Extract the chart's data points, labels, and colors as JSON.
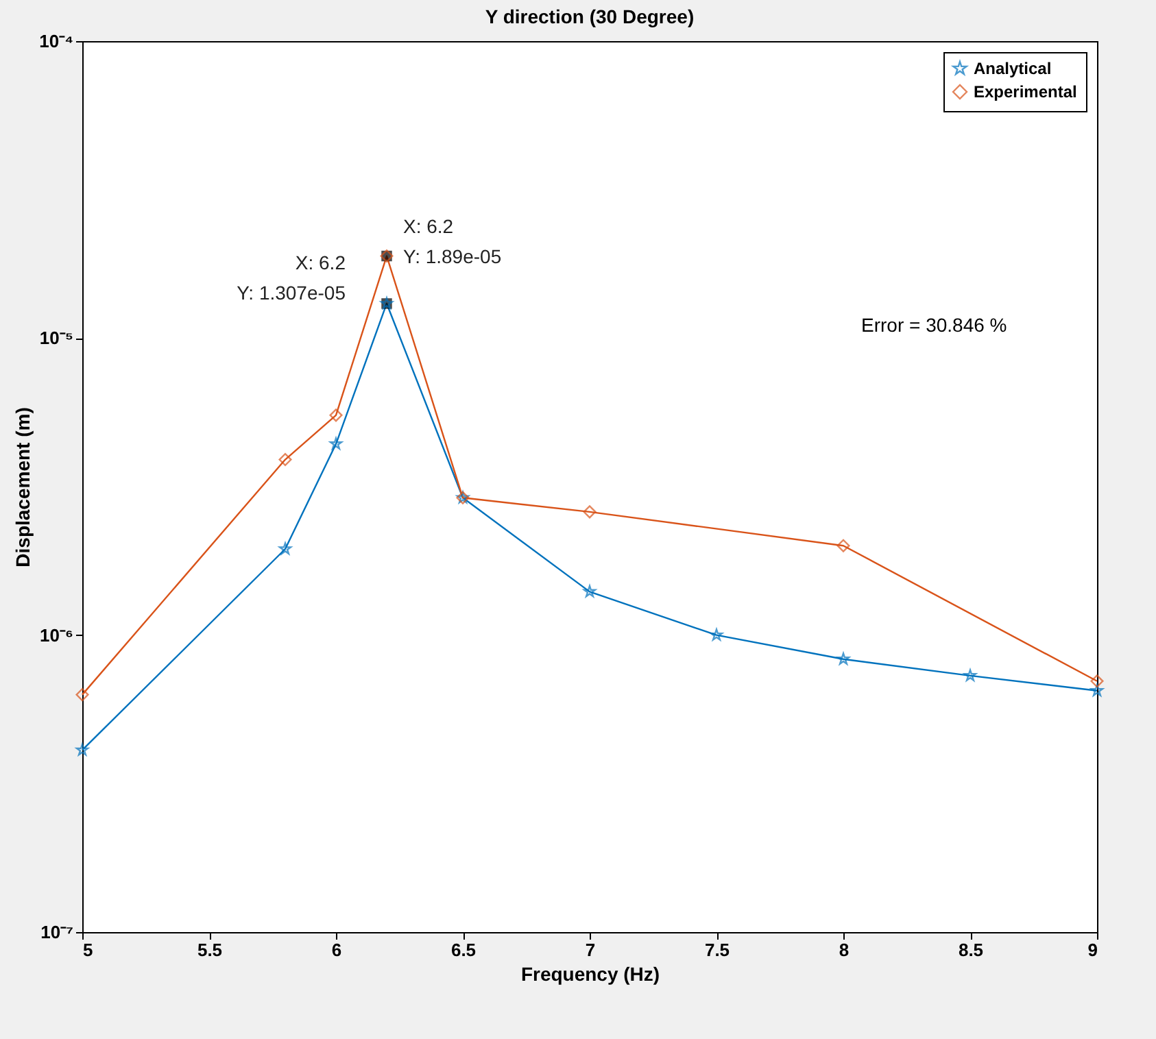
{
  "chart_data": {
    "type": "line",
    "title": "Y direction (30 Degree)",
    "xlabel": "Frequency (Hz)",
    "ylabel": "Displacement (m)",
    "log": "y",
    "grid": false,
    "legend": "top right",
    "xlim": [
      5,
      9
    ],
    "xticks": [
      5,
      5.5,
      6,
      6.5,
      7,
      7.5,
      8,
      8.5,
      9
    ],
    "ylim": [
      1e-07,
      0.0001
    ],
    "yticks": [
      {
        "value": 1e-07,
        "label": "10⁻⁷"
      },
      {
        "value": 1e-06,
        "label": "10⁻⁶"
      },
      {
        "value": 1e-05,
        "label": "10⁻⁵"
      },
      {
        "value": 0.0001,
        "label": "10⁻⁴"
      }
    ],
    "series": [
      {
        "name": "Analytical",
        "color": "#0072bd",
        "marker": "star",
        "x": [
          5,
          5.8,
          6,
          6.2,
          6.5,
          7,
          7.5,
          8,
          8.5,
          9
        ],
        "values": [
          4.1e-07,
          1.95e-06,
          4.4e-06,
          1.307e-05,
          2.9e-06,
          1.4e-06,
          1e-06,
          8.3e-07,
          7.3e-07,
          6.5e-07
        ]
      },
      {
        "name": "Experimental",
        "color": "#d95319",
        "marker": "diamond",
        "x": [
          5,
          5.8,
          6,
          6.2,
          6.5,
          7,
          8,
          9
        ],
        "values": [
          6.3e-07,
          3.9e-06,
          5.5e-06,
          1.89e-05,
          2.9e-06,
          2.6e-06,
          2e-06,
          7e-07
        ]
      }
    ],
    "annotations": [
      {
        "text": "X: 6.2\nY: 1.307e-05",
        "x": 6.2,
        "y": 1.307e-05
      },
      {
        "text": "X: 6.2\nY: 1.89e-05",
        "x": 6.2,
        "y": 1.89e-05
      },
      "Error = 30.846 %"
    ]
  }
}
